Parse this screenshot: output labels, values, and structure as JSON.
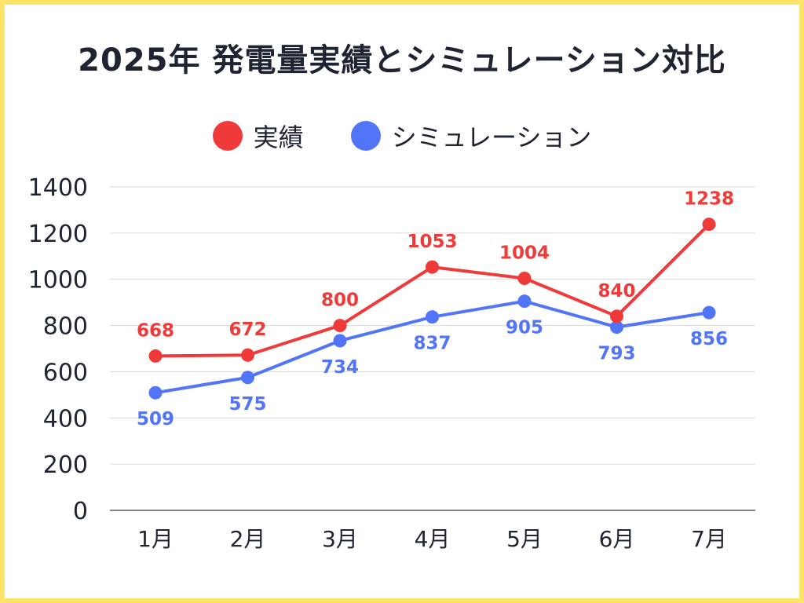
{
  "chart_data": {
    "type": "line",
    "title": "2025年 発電量実績とシミュレーション対比",
    "categories": [
      "1月",
      "2月",
      "3月",
      "4月",
      "5月",
      "6月",
      "7月"
    ],
    "series": [
      {
        "name": "実績",
        "color": "#f03a3a",
        "values": [
          668,
          672,
          800,
          1053,
          1004,
          840,
          1238
        ],
        "label_position": "above"
      },
      {
        "name": "シミュレーション",
        "color": "#5274f7",
        "values": [
          509,
          575,
          734,
          837,
          905,
          793,
          856
        ],
        "label_position": "below"
      }
    ],
    "ylim": [
      0,
      1400
    ],
    "yticks": [
      0,
      200,
      400,
      600,
      800,
      1000,
      1200,
      1400
    ],
    "grid": true,
    "legend": "top-center"
  }
}
